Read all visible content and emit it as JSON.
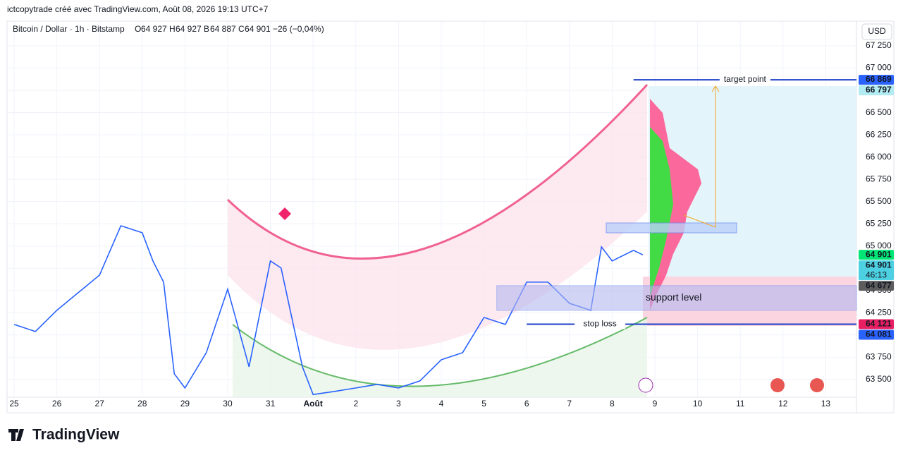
{
  "header": {
    "attribution": "ictcopytrade créé avec TradingView.com, Août 08, 2026 19:13 UTC+7"
  },
  "legend": {
    "symbol": "Bitcoin / Dollar · 1h · Bitstamp",
    "ohlc": [
      {
        "label": "O",
        "value": "64 927"
      },
      {
        "label": "H",
        "value": "64 927"
      },
      {
        "label": "B",
        "value": "64 887"
      },
      {
        "label": "C",
        "value": "64 901"
      }
    ],
    "change": "−26 (−0,04%)"
  },
  "currency": "USD",
  "logo": "TradingView",
  "chart_data": {
    "type": "line",
    "grid": true,
    "xlim": [
      -0.165,
      19.72
    ],
    "ylim": [
      63300,
      67528
    ],
    "xticks": [
      {
        "value": 0,
        "label": "25"
      },
      {
        "value": 1,
        "label": "26"
      },
      {
        "value": 2,
        "label": "27"
      },
      {
        "value": 3,
        "label": "28"
      },
      {
        "value": 4,
        "label": "29"
      },
      {
        "value": 5,
        "label": "30"
      },
      {
        "value": 6,
        "label": "31"
      },
      {
        "value": 7,
        "label": "Août"
      },
      {
        "value": 8,
        "label": "2"
      },
      {
        "value": 9,
        "label": "3"
      },
      {
        "value": 10,
        "label": "4"
      },
      {
        "value": 11,
        "label": "5"
      },
      {
        "value": 12,
        "label": "6"
      },
      {
        "value": 13,
        "label": "7"
      },
      {
        "value": 14,
        "label": "8"
      },
      {
        "value": 15,
        "label": "9"
      },
      {
        "value": 16,
        "label": "10"
      },
      {
        "value": 17,
        "label": "11"
      },
      {
        "value": 18,
        "label": "12"
      },
      {
        "value": 19,
        "label": "13"
      }
    ],
    "yticks": [
      {
        "value": 63500,
        "label": "63 500"
      },
      {
        "value": 63750,
        "label": "63 750"
      },
      {
        "value": 64000,
        "label": "64 000"
      },
      {
        "value": 64250,
        "label": "64 250"
      },
      {
        "value": 64500,
        "label": "64 500"
      },
      {
        "value": 64750,
        "label": "64 750"
      },
      {
        "value": 65000,
        "label": "65 000"
      },
      {
        "value": 65250,
        "label": "65 250"
      },
      {
        "value": 65500,
        "label": "65 500"
      },
      {
        "value": 65750,
        "label": "65 750"
      },
      {
        "value": 66000,
        "label": "66 000"
      },
      {
        "value": 66250,
        "label": "66 250"
      },
      {
        "value": 66500,
        "label": "66 500"
      },
      {
        "value": 66750,
        "label": "66 750"
      },
      {
        "value": 67000,
        "label": "67 000"
      },
      {
        "value": 67250,
        "label": "67 250"
      }
    ],
    "series": [
      {
        "color": "#2962ff",
        "x": [
          0,
          0.5,
          1,
          1.5,
          2,
          2.5,
          3,
          3.25,
          3.5,
          3.75,
          4,
          4.5,
          5,
          5.5,
          6,
          6.25,
          6.5,
          6.75,
          7,
          7.5,
          8,
          8.5,
          9,
          9.5,
          10,
          10.5,
          11,
          11.5,
          12,
          12.5,
          13,
          13.5,
          13.75,
          14,
          14.5,
          14.72
        ],
        "values": [
          64118,
          64039,
          64277,
          64475,
          64673,
          65228,
          65149,
          64832,
          64594,
          63563,
          63404,
          63801,
          64515,
          63642,
          64832,
          64753,
          64197,
          63642,
          63330,
          63365,
          63404,
          63444,
          63404,
          63483,
          63721,
          63801,
          64197,
          64118,
          64594,
          64594,
          64356,
          64277,
          64990,
          64832,
          64951,
          64901
        ]
      }
    ],
    "price_tags": [
      {
        "value": 66869,
        "label": "66 869",
        "color": "#2962ff"
      },
      {
        "value": 66797,
        "label": "66 797",
        "color": "#b2ebf2"
      },
      {
        "value": 64901,
        "label": "64 901",
        "color": "#00e676"
      },
      {
        "value": 64901,
        "label": "64 901",
        "color": "#4dd0e1",
        "timer": "46:13"
      },
      {
        "value": 64677,
        "label": "64 677",
        "color": "#5d5d5d"
      },
      {
        "value": 64121,
        "label": "64 121",
        "color": "#e91e63"
      },
      {
        "value": 64081,
        "label": "64 081",
        "color": "#2962ff"
      }
    ],
    "annotations": [
      {
        "text": "target point",
        "value": 66869,
        "from": 14.5
      },
      {
        "text": "stop loss",
        "value": 64121,
        "from": 12
      },
      {
        "text": "support level",
        "low": 64277,
        "high": 64554,
        "from": 11.3
      }
    ]
  }
}
